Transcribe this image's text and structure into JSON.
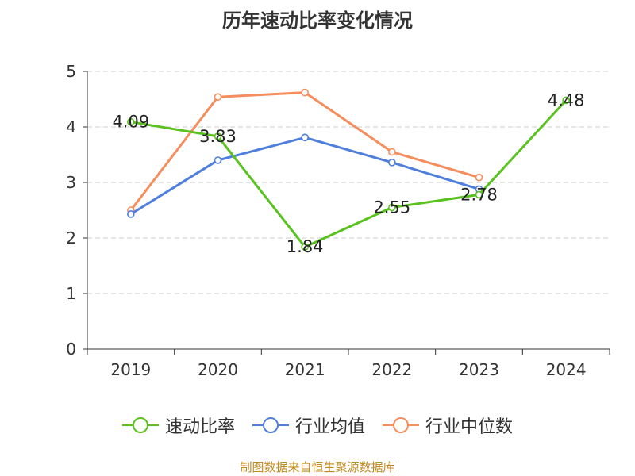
{
  "chart_data": {
    "type": "line",
    "title": "历年速动比率变化情况",
    "categories": [
      "2019",
      "2020",
      "2021",
      "2022",
      "2023",
      "2024"
    ],
    "ylim": [
      0,
      5
    ],
    "yticks": [
      0,
      1,
      2,
      3,
      4,
      5
    ],
    "grid": true,
    "legend": "bottom",
    "series": [
      {
        "name": "速动比率",
        "color": "#5ac21f",
        "show_labels": true,
        "values": [
          4.09,
          3.83,
          1.84,
          2.55,
          2.78,
          4.48
        ],
        "labels": [
          "4.09",
          "3.83",
          "1.84",
          "2.55",
          "2.78",
          "4.48"
        ]
      },
      {
        "name": "行业均值",
        "color": "#4f7fdc",
        "show_labels": false,
        "values": [
          2.43,
          3.4,
          3.81,
          3.36,
          2.88,
          null
        ]
      },
      {
        "name": "行业中位数",
        "color": "#f58d5c",
        "show_labels": false,
        "values": [
          2.5,
          4.54,
          4.62,
          3.55,
          3.09,
          null
        ]
      }
    ]
  },
  "source": "制图数据来自恒生聚源数据库"
}
